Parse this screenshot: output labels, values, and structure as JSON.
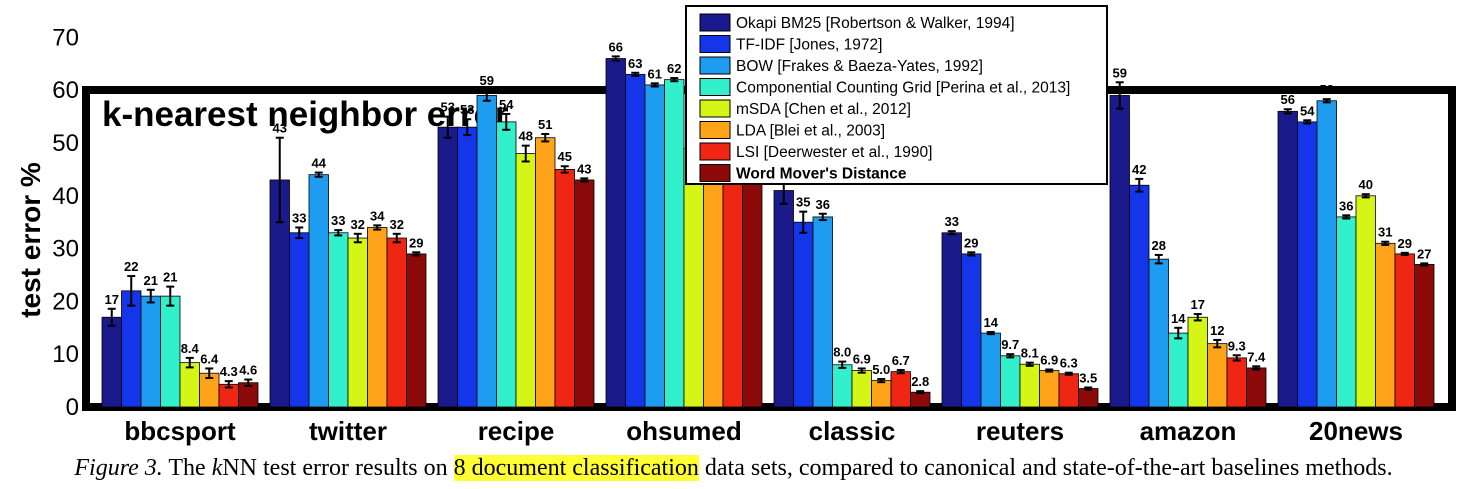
{
  "chart_data": {
    "type": "bar",
    "title": "k-nearest neighbor error",
    "ylabel": "test error %",
    "xlabel": "",
    "ylim": [
      0,
      75
    ],
    "yticks": [
      0,
      10,
      20,
      30,
      40,
      50,
      60,
      70
    ],
    "grid": false,
    "legend_position": "top-center",
    "categories": [
      "bbcsport",
      "twitter",
      "recipe",
      "ohsumed",
      "classic",
      "reuters",
      "amazon",
      "20news"
    ],
    "series": [
      {
        "name": "Okapi BM25 [Robertson & Walker, 1994]",
        "color": "#1a1a8c",
        "values": [
          17,
          43,
          53,
          66,
          41,
          33,
          59,
          56
        ],
        "value_labels": [
          "17",
          "43",
          "53",
          "66",
          "41",
          "33",
          "59",
          "56"
        ],
        "errors": [
          1.6,
          8,
          2,
          0.4,
          2.5,
          0.3,
          2.5,
          0.4
        ]
      },
      {
        "name": "TF-IDF [Jones, 1972]",
        "color": "#1436e8",
        "values": [
          22,
          33,
          53,
          63,
          35,
          29,
          42,
          54
        ],
        "value_labels": [
          "22",
          "33",
          "53",
          "63",
          "35",
          "29",
          "42",
          "54"
        ],
        "errors": [
          2.8,
          1,
          1.5,
          0.3,
          2,
          0.3,
          1.2,
          0.3
        ]
      },
      {
        "name": "BOW [Frakes & Baeza-Yates, 1992]",
        "color": "#1e9cf0",
        "values": [
          21,
          44,
          59,
          61,
          36,
          14,
          28,
          58
        ],
        "value_labels": [
          "21",
          "44",
          "59",
          "61",
          "36",
          "14",
          "28",
          "58"
        ],
        "errors": [
          1.2,
          0.4,
          1,
          0.3,
          0.6,
          0.2,
          0.8,
          0.3
        ]
      },
      {
        "name": "Componential Counting Grid [Perina et al., 2013]",
        "color": "#33f0cc",
        "values": [
          21,
          33,
          54,
          62,
          8.0,
          9.7,
          14,
          36
        ],
        "value_labels": [
          "21",
          "33",
          "54",
          "62",
          "8.0",
          "9.7",
          "14",
          "36"
        ],
        "errors": [
          1.8,
          0.5,
          1.5,
          0.3,
          0.6,
          0.3,
          1,
          0.3
        ]
      },
      {
        "name": "mSDA [Chen et al., 2012]",
        "color": "#d4f516",
        "values": [
          8.4,
          32,
          48,
          49,
          6.9,
          8.1,
          17,
          40
        ],
        "value_labels": [
          "8.4",
          "32",
          "48",
          "49",
          "6.9",
          "8.1",
          "17",
          "40"
        ],
        "errors": [
          0.9,
          0.8,
          1.5,
          0.3,
          0.4,
          0.3,
          0.6,
          0.3
        ]
      },
      {
        "name": "LDA [Blei et al., 2003]",
        "color": "#ffa31a",
        "values": [
          6.4,
          34,
          51,
          51,
          5.0,
          6.9,
          12,
          31
        ],
        "value_labels": [
          "6.4",
          "34",
          "51",
          "51",
          "5.0",
          "6.9",
          "12",
          "31"
        ],
        "errors": [
          0.9,
          0.4,
          0.7,
          0.3,
          0.3,
          0.2,
          0.7,
          0.3
        ]
      },
      {
        "name": "LSI [Deerwester et al., 1990]",
        "color": "#f02614",
        "values": [
          4.3,
          32,
          45,
          44,
          6.7,
          6.3,
          9.3,
          29
        ],
        "value_labels": [
          "4.3",
          "32",
          "45",
          "44",
          "6.7",
          "6.3",
          "9.3",
          "29"
        ],
        "errors": [
          0.6,
          0.8,
          0.6,
          0.3,
          0.3,
          0.2,
          0.5,
          0.2
        ]
      },
      {
        "name": "Word Mover's Distance",
        "color": "#8c0a0a",
        "bold": true,
        "values": [
          4.6,
          29,
          43,
          44,
          2.8,
          3.5,
          7.4,
          27
        ],
        "value_labels": [
          "4.6",
          "29",
          "43",
          "44",
          "2.8",
          "3.5",
          "7.4",
          "27"
        ],
        "errors": [
          0.6,
          0.3,
          0.3,
          0.3,
          0.2,
          0.2,
          0.3,
          0.2
        ]
      }
    ]
  },
  "caption": {
    "figure": "Figure 3.",
    "before_k": " The ",
    "k": "k",
    "text": "NN test error results on ",
    "highlight": "8 document classification",
    "after": " data sets, compared to canonical and state-of-the-art baselines methods."
  }
}
